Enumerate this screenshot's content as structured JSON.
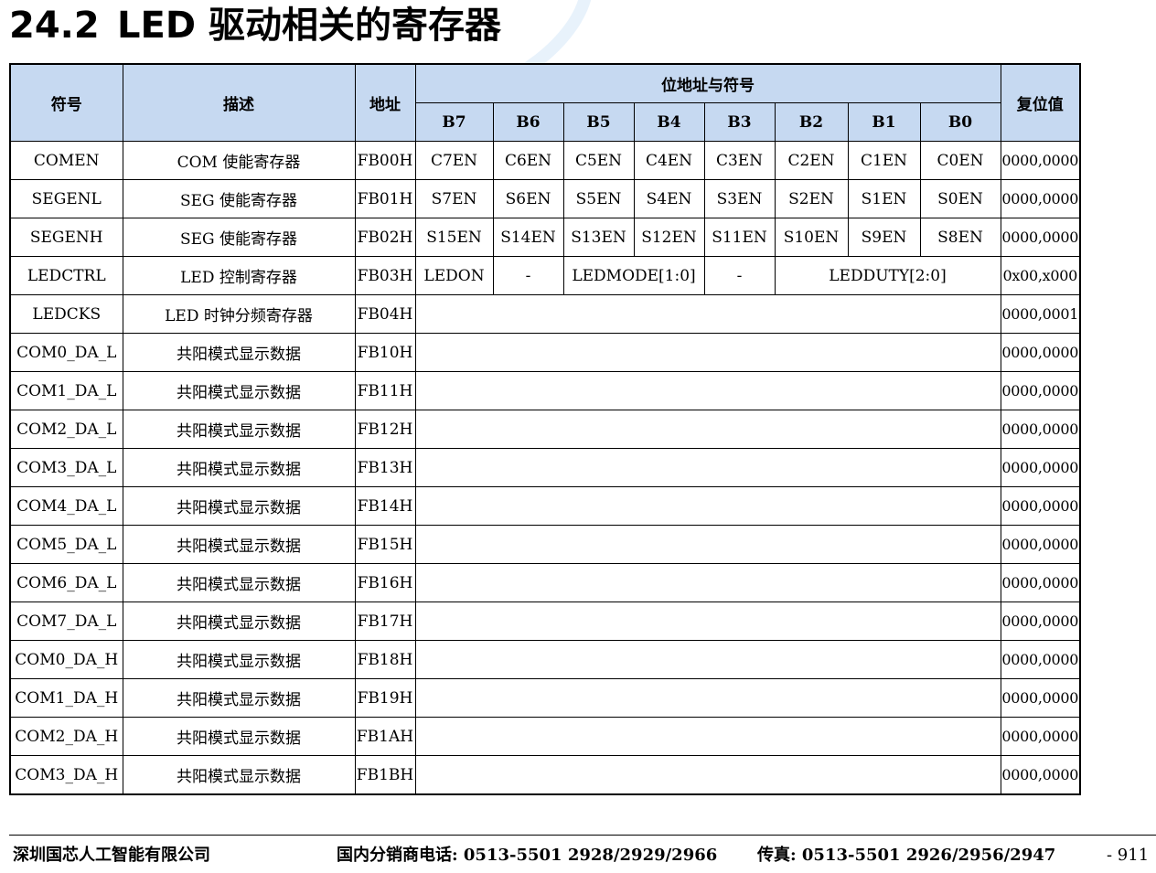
{
  "section": {
    "number": "24.2",
    "title": "LED 驱动相关的寄存器"
  },
  "table": {
    "headers": {
      "symbol": "符号",
      "description": "描述",
      "address": "地址",
      "bits_group": "位地址与符号",
      "reset": "复位值",
      "bits": [
        "B7",
        "B6",
        "B5",
        "B4",
        "B3",
        "B2",
        "B1",
        "B0"
      ]
    },
    "rows": [
      {
        "symbol": "COMEN",
        "description": "COM 使能寄存器",
        "address": "FB00H",
        "bits": [
          "C7EN",
          "C6EN",
          "C5EN",
          "C4EN",
          "C3EN",
          "C2EN",
          "C1EN",
          "C0EN"
        ],
        "reset": "0000,0000"
      },
      {
        "symbol": "SEGENL",
        "description": "SEG 使能寄存器",
        "address": "FB01H",
        "bits": [
          "S7EN",
          "S6EN",
          "S5EN",
          "S4EN",
          "S3EN",
          "S2EN",
          "S1EN",
          "S0EN"
        ],
        "reset": "0000,0000"
      },
      {
        "symbol": "SEGENH",
        "description": "SEG 使能寄存器",
        "address": "FB02H",
        "bits": [
          "S15EN",
          "S14EN",
          "S13EN",
          "S12EN",
          "S11EN",
          "S10EN",
          "S9EN",
          "S8EN"
        ],
        "reset": "0000,0000"
      },
      {
        "symbol": "LEDCTRL",
        "description": "LED 控制寄存器",
        "address": "FB03H",
        "fields": [
          {
            "label": "LEDON",
            "span": 1
          },
          {
            "label": "-",
            "span": 1
          },
          {
            "label": "LEDMODE[1:0]",
            "span": 2
          },
          {
            "label": "-",
            "span": 1
          },
          {
            "label": "LEDDUTY[2:0]",
            "span": 3
          }
        ],
        "reset": "0x00,x000"
      },
      {
        "symbol": "LEDCKS",
        "description": "LED 时钟分频寄存器",
        "address": "FB04H",
        "reset": "0000,0001"
      },
      {
        "symbol": "COM0_DA_L",
        "description": "共阳模式显示数据",
        "address": "FB10H",
        "reset": "0000,0000"
      },
      {
        "symbol": "COM1_DA_L",
        "description": "共阳模式显示数据",
        "address": "FB11H",
        "reset": "0000,0000"
      },
      {
        "symbol": "COM2_DA_L",
        "description": "共阳模式显示数据",
        "address": "FB12H",
        "reset": "0000,0000"
      },
      {
        "symbol": "COM3_DA_L",
        "description": "共阳模式显示数据",
        "address": "FB13H",
        "reset": "0000,0000"
      },
      {
        "symbol": "COM4_DA_L",
        "description": "共阳模式显示数据",
        "address": "FB14H",
        "reset": "0000,0000"
      },
      {
        "symbol": "COM5_DA_L",
        "description": "共阳模式显示数据",
        "address": "FB15H",
        "reset": "0000,0000"
      },
      {
        "symbol": "COM6_DA_L",
        "description": "共阳模式显示数据",
        "address": "FB16H",
        "reset": "0000,0000"
      },
      {
        "symbol": "COM7_DA_L",
        "description": "共阳模式显示数据",
        "address": "FB17H",
        "reset": "0000,0000"
      },
      {
        "symbol": "COM0_DA_H",
        "description": "共阳模式显示数据",
        "address": "FB18H",
        "reset": "0000,0000"
      },
      {
        "symbol": "COM1_DA_H",
        "description": "共阳模式显示数据",
        "address": "FB19H",
        "reset": "0000,0000"
      },
      {
        "symbol": "COM2_DA_H",
        "description": "共阳模式显示数据",
        "address": "FB1AH",
        "reset": "0000,0000"
      },
      {
        "symbol": "COM3_DA_H",
        "description": "共阳模式显示数据",
        "address": "FB1BH",
        "reset": "0000,0000"
      }
    ]
  },
  "footer": {
    "company": "深圳国芯人工智能有限公司",
    "phone": "国内分销商电话: 0513-5501 2928/2929/2966",
    "fax": "传真: 0513-5501 2926/2956/2947",
    "page": "- 911"
  },
  "colors": {
    "header_fill": "#c6d9f1",
    "watermark": "#e6f1fb"
  }
}
